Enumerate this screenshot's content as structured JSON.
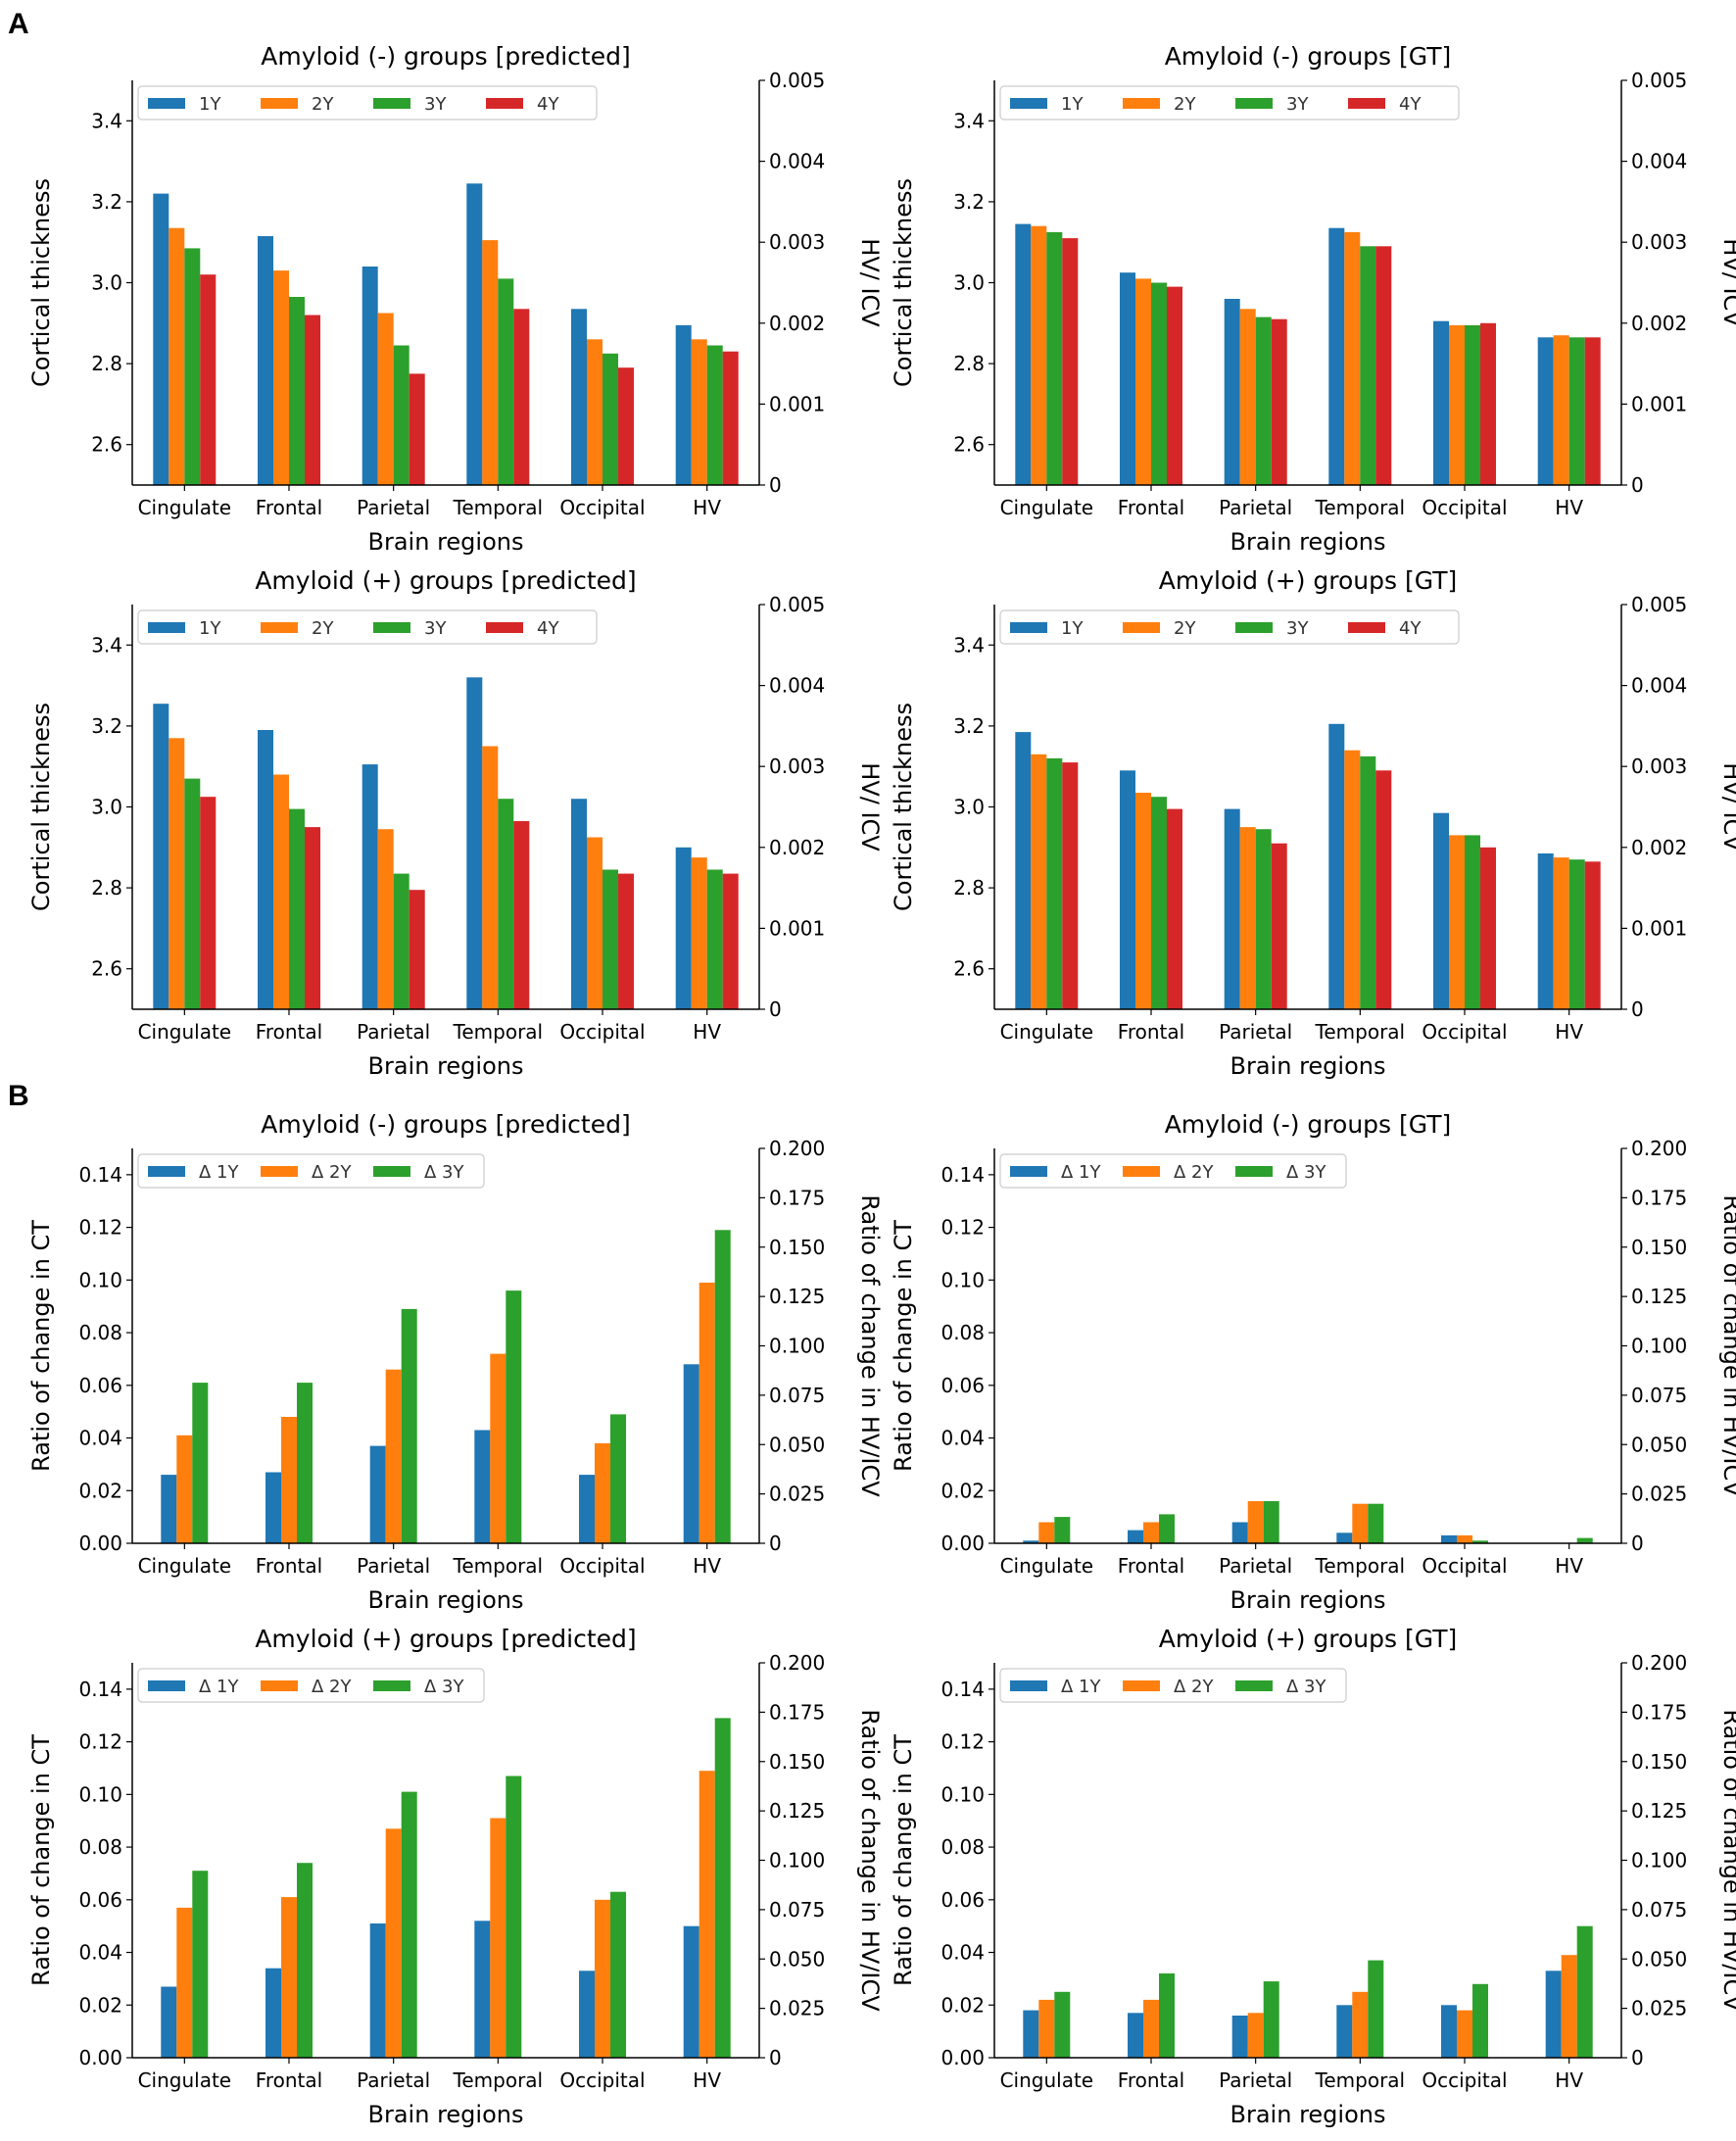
{
  "figure": {
    "panel_labels": [
      "A",
      "B"
    ],
    "colors": [
      "#1f77b4",
      "#ff7f0e",
      "#2ca02c",
      "#d62728"
    ]
  },
  "chart_data": [
    {
      "type": "bar",
      "title": "Amyloid (-) groups [predicted]",
      "xlabel": "Brain regions",
      "ylabel": "Cortical thickness",
      "y2label": "HV/ ICV",
      "categories": [
        "Cingulate",
        "Frontal",
        "Parietal",
        "Temporal",
        "Occipital",
        "HV"
      ],
      "legend": [
        "1Y",
        "2Y",
        "3Y",
        "4Y"
      ],
      "ylim": [
        2.5,
        3.5
      ],
      "yticks": [
        "2.6",
        "2.8",
        "3.0",
        "3.2",
        "3.4"
      ],
      "y2lim": [
        0,
        0.005
      ],
      "y2ticks": [
        "0",
        "0.001",
        "0.002",
        "0.003",
        "0.004",
        "0.005"
      ],
      "series": [
        {
          "name": "1Y",
          "values": [
            3.22,
            3.115,
            3.04,
            3.245,
            2.935,
            2.895
          ]
        },
        {
          "name": "2Y",
          "values": [
            3.135,
            3.03,
            2.925,
            3.105,
            2.86,
            2.86
          ]
        },
        {
          "name": "3Y",
          "values": [
            3.085,
            2.965,
            2.845,
            3.01,
            2.825,
            2.845
          ]
        },
        {
          "name": "4Y",
          "values": [
            3.02,
            2.92,
            2.775,
            2.935,
            2.79,
            2.83
          ]
        }
      ]
    },
    {
      "type": "bar",
      "title": "Amyloid (-) groups [GT]",
      "xlabel": "Brain regions",
      "ylabel": "Cortical thickness",
      "y2label": "HV/ ICV",
      "categories": [
        "Cingulate",
        "Frontal",
        "Parietal",
        "Temporal",
        "Occipital",
        "HV"
      ],
      "legend": [
        "1Y",
        "2Y",
        "3Y",
        "4Y"
      ],
      "ylim": [
        2.5,
        3.5
      ],
      "yticks": [
        "2.6",
        "2.8",
        "3.0",
        "3.2",
        "3.4"
      ],
      "y2lim": [
        0,
        0.005
      ],
      "y2ticks": [
        "0",
        "0.001",
        "0.002",
        "0.003",
        "0.004",
        "0.005"
      ],
      "series": [
        {
          "name": "1Y",
          "values": [
            3.145,
            3.025,
            2.96,
            3.135,
            2.905,
            2.865
          ]
        },
        {
          "name": "2Y",
          "values": [
            3.14,
            3.01,
            2.935,
            3.125,
            2.895,
            2.87
          ]
        },
        {
          "name": "3Y",
          "values": [
            3.125,
            3.0,
            2.915,
            3.09,
            2.895,
            2.865
          ]
        },
        {
          "name": "4Y",
          "values": [
            3.11,
            2.99,
            2.91,
            3.09,
            2.9,
            2.865
          ]
        }
      ]
    },
    {
      "type": "bar",
      "title": "Amyloid (+) groups [predicted]",
      "xlabel": "Brain regions",
      "ylabel": "Cortical thickness",
      "y2label": "HV/ ICV",
      "categories": [
        "Cingulate",
        "Frontal",
        "Parietal",
        "Temporal",
        "Occipital",
        "HV"
      ],
      "legend": [
        "1Y",
        "2Y",
        "3Y",
        "4Y"
      ],
      "ylim": [
        2.5,
        3.5
      ],
      "yticks": [
        "2.6",
        "2.8",
        "3.0",
        "3.2",
        "3.4"
      ],
      "y2lim": [
        0,
        0.005
      ],
      "y2ticks": [
        "0",
        "0.001",
        "0.002",
        "0.003",
        "0.004",
        "0.005"
      ],
      "series": [
        {
          "name": "1Y",
          "values": [
            3.255,
            3.19,
            3.105,
            3.32,
            3.02,
            2.9
          ]
        },
        {
          "name": "2Y",
          "values": [
            3.17,
            3.08,
            2.945,
            3.15,
            2.925,
            2.875
          ]
        },
        {
          "name": "3Y",
          "values": [
            3.07,
            2.995,
            2.835,
            3.02,
            2.845,
            2.845
          ]
        },
        {
          "name": "4Y",
          "values": [
            3.025,
            2.95,
            2.795,
            2.965,
            2.835,
            2.835
          ]
        }
      ]
    },
    {
      "type": "bar",
      "title": "Amyloid (+) groups [GT]",
      "xlabel": "Brain regions",
      "ylabel": "Cortical thickness",
      "y2label": "HV/ ICV",
      "categories": [
        "Cingulate",
        "Frontal",
        "Parietal",
        "Temporal",
        "Occipital",
        "HV"
      ],
      "legend": [
        "1Y",
        "2Y",
        "3Y",
        "4Y"
      ],
      "ylim": [
        2.5,
        3.5
      ],
      "yticks": [
        "2.6",
        "2.8",
        "3.0",
        "3.2",
        "3.4"
      ],
      "y2lim": [
        0,
        0.005
      ],
      "y2ticks": [
        "0",
        "0.001",
        "0.002",
        "0.003",
        "0.004",
        "0.005"
      ],
      "series": [
        {
          "name": "1Y",
          "values": [
            3.185,
            3.09,
            2.995,
            3.205,
            2.985,
            2.885
          ]
        },
        {
          "name": "2Y",
          "values": [
            3.13,
            3.035,
            2.95,
            3.14,
            2.93,
            2.875
          ]
        },
        {
          "name": "3Y",
          "values": [
            3.12,
            3.025,
            2.945,
            3.125,
            2.93,
            2.87
          ]
        },
        {
          "name": "4Y",
          "values": [
            3.11,
            2.995,
            2.91,
            3.09,
            2.9,
            2.865
          ]
        }
      ]
    },
    {
      "type": "bar",
      "title": "Amyloid (-) groups [predicted]",
      "xlabel": "Brain regions",
      "ylabel": "Ratio of change in CT",
      "y2label": "Ratio of change in HV/ICV",
      "categories": [
        "Cingulate",
        "Frontal",
        "Parietal",
        "Temporal",
        "Occipital",
        "HV"
      ],
      "legend": [
        "Δ 1Y",
        "Δ 2Y",
        "Δ 3Y"
      ],
      "ylim": [
        0,
        0.15
      ],
      "yticks": [
        "0.00",
        "0.02",
        "0.04",
        "0.06",
        "0.08",
        "0.10",
        "0.12",
        "0.14"
      ],
      "y2lim": [
        0,
        0.2
      ],
      "y2ticks": [
        "0",
        "0.025",
        "0.050",
        "0.075",
        "0.100",
        "0.125",
        "0.150",
        "0.175",
        "0.200"
      ],
      "series": [
        {
          "name": "Δ 1Y",
          "values": [
            0.026,
            0.027,
            0.037,
            0.043,
            0.026,
            0.068
          ]
        },
        {
          "name": "Δ 2Y",
          "values": [
            0.041,
            0.048,
            0.066,
            0.072,
            0.038,
            0.099
          ]
        },
        {
          "name": "Δ 3Y",
          "values": [
            0.061,
            0.061,
            0.089,
            0.096,
            0.049,
            0.119
          ]
        }
      ]
    },
    {
      "type": "bar",
      "title": "Amyloid (-) groups [GT]",
      "xlabel": "Brain regions",
      "ylabel": "Ratio of change in CT",
      "y2label": "Ratio of change in HV/ICV",
      "categories": [
        "Cingulate",
        "Frontal",
        "Parietal",
        "Temporal",
        "Occipital",
        "HV"
      ],
      "legend": [
        "Δ 1Y",
        "Δ 2Y",
        "Δ 3Y"
      ],
      "ylim": [
        0,
        0.15
      ],
      "yticks": [
        "0.00",
        "0.02",
        "0.04",
        "0.06",
        "0.08",
        "0.10",
        "0.12",
        "0.14"
      ],
      "y2lim": [
        0,
        0.2
      ],
      "y2ticks": [
        "0",
        "0.025",
        "0.050",
        "0.075",
        "0.100",
        "0.125",
        "0.150",
        "0.175",
        "0.200"
      ],
      "series": [
        {
          "name": "Δ 1Y",
          "values": [
            0.001,
            0.005,
            0.008,
            0.004,
            0.003,
            0.0
          ]
        },
        {
          "name": "Δ 2Y",
          "values": [
            0.008,
            0.008,
            0.016,
            0.015,
            0.003,
            0.0
          ]
        },
        {
          "name": "Δ 3Y",
          "values": [
            0.01,
            0.011,
            0.016,
            0.015,
            0.001,
            0.002
          ]
        }
      ]
    },
    {
      "type": "bar",
      "title": "Amyloid (+) groups [predicted]",
      "xlabel": "Brain regions",
      "ylabel": "Ratio of change in CT",
      "y2label": "Ratio of change in HV/ICV",
      "categories": [
        "Cingulate",
        "Frontal",
        "Parietal",
        "Temporal",
        "Occipital",
        "HV"
      ],
      "legend": [
        "Δ 1Y",
        "Δ 2Y",
        "Δ 3Y"
      ],
      "ylim": [
        0,
        0.15
      ],
      "yticks": [
        "0.00",
        "0.02",
        "0.04",
        "0.06",
        "0.08",
        "0.10",
        "0.12",
        "0.14"
      ],
      "y2lim": [
        0,
        0.2
      ],
      "y2ticks": [
        "0",
        "0.025",
        "0.050",
        "0.075",
        "0.100",
        "0.125",
        "0.150",
        "0.175",
        "0.200"
      ],
      "series": [
        {
          "name": "Δ 1Y",
          "values": [
            0.027,
            0.034,
            0.051,
            0.052,
            0.033,
            0.05
          ]
        },
        {
          "name": "Δ 2Y",
          "values": [
            0.057,
            0.061,
            0.087,
            0.091,
            0.06,
            0.109
          ]
        },
        {
          "name": "Δ 3Y",
          "values": [
            0.071,
            0.074,
            0.101,
            0.107,
            0.063,
            0.129
          ]
        }
      ]
    },
    {
      "type": "bar",
      "title": "Amyloid (+) groups [GT]",
      "xlabel": "Brain regions",
      "ylabel": "Ratio of change in CT",
      "y2label": "Ratio of change in HV/ICV",
      "categories": [
        "Cingulate",
        "Frontal",
        "Parietal",
        "Temporal",
        "Occipital",
        "HV"
      ],
      "legend": [
        "Δ 1Y",
        "Δ 2Y",
        "Δ 3Y"
      ],
      "ylim": [
        0,
        0.15
      ],
      "yticks": [
        "0.00",
        "0.02",
        "0.04",
        "0.06",
        "0.08",
        "0.10",
        "0.12",
        "0.14"
      ],
      "y2lim": [
        0,
        0.2
      ],
      "y2ticks": [
        "0",
        "0.025",
        "0.050",
        "0.075",
        "0.100",
        "0.125",
        "0.150",
        "0.175",
        "0.200"
      ],
      "series": [
        {
          "name": "Δ 1Y",
          "values": [
            0.018,
            0.017,
            0.016,
            0.02,
            0.02,
            0.033
          ]
        },
        {
          "name": "Δ 2Y",
          "values": [
            0.022,
            0.022,
            0.017,
            0.025,
            0.018,
            0.039
          ]
        },
        {
          "name": "Δ 3Y",
          "values": [
            0.025,
            0.032,
            0.029,
            0.037,
            0.028,
            0.05
          ]
        }
      ]
    }
  ]
}
